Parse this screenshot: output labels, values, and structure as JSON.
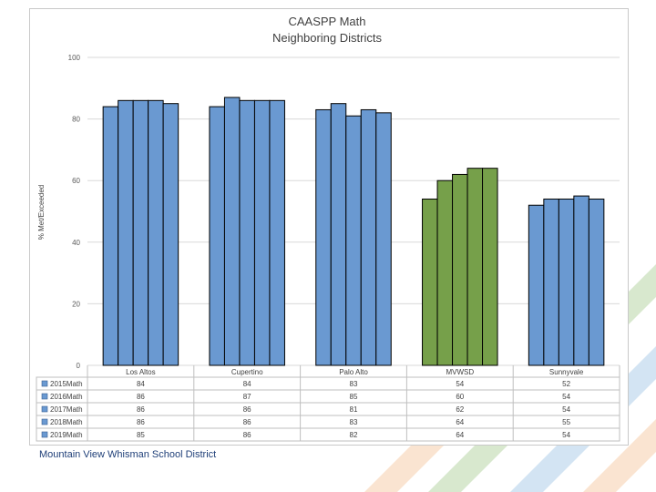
{
  "footer": {
    "text": "Mountain View Whisman School District"
  },
  "colors": {
    "default_bar": "#6a99d1",
    "highlight_bar": "#76a04a",
    "grid": "#d9d9d9",
    "bar_outline": "#000000"
  },
  "decor": {
    "stripe_colors": [
      "#f4c39a",
      "#a9cd92",
      "#9ec3e4"
    ]
  },
  "chart_data": {
    "type": "bar",
    "title": "CAASPP Math",
    "subtitle": "Neighboring Districts",
    "ylabel": "% Met/Exceeded",
    "xlabel": "",
    "ylim": [
      0,
      100
    ],
    "yticks": [
      0,
      20,
      40,
      60,
      80,
      100
    ],
    "grid": true,
    "legend": "data-table",
    "highlight_category": "MVWSD",
    "categories": [
      "Los Altos",
      "Cupertino",
      "Palo Alto",
      "MVWSD",
      "Sunnyvale"
    ],
    "series": [
      {
        "name": "2015Math",
        "values": [
          84,
          84,
          83,
          54,
          52
        ]
      },
      {
        "name": "2016Math",
        "values": [
          86,
          87,
          85,
          60,
          54
        ]
      },
      {
        "name": "2017Math",
        "values": [
          86,
          86,
          81,
          62,
          54
        ]
      },
      {
        "name": "2018Math",
        "values": [
          86,
          86,
          83,
          64,
          55
        ]
      },
      {
        "name": "2019Math",
        "values": [
          85,
          86,
          82,
          64,
          54
        ]
      }
    ]
  }
}
